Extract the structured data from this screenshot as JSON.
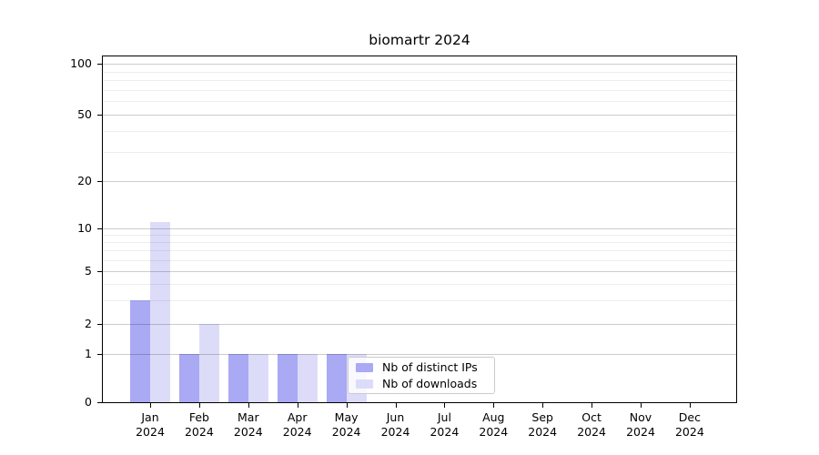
{
  "chart_data": {
    "type": "bar",
    "title": "biomartr 2024",
    "x_categories": [
      "Jan",
      "Feb",
      "Mar",
      "Apr",
      "May",
      "Jun",
      "Jul",
      "Aug",
      "Sep",
      "Oct",
      "Nov",
      "Dec"
    ],
    "x_year": "2024",
    "series": [
      {
        "name": "Nb of distinct IPs",
        "color": "#a9a9f4",
        "values": [
          3,
          1,
          1,
          1,
          1,
          0,
          0,
          0,
          0,
          0,
          0,
          0
        ]
      },
      {
        "name": "Nb of downloads",
        "color": "#dcdcf9",
        "values": [
          11,
          2,
          1,
          1,
          1,
          0,
          0,
          0,
          0,
          0,
          0,
          0
        ]
      }
    ],
    "y_axis": {
      "ticks": [
        0,
        1,
        2,
        5,
        10,
        20,
        50,
        100
      ],
      "minor_gridlines": [
        3,
        4,
        6,
        7,
        8,
        9,
        30,
        40,
        60,
        70,
        80,
        90
      ],
      "scale": "log-like above 1, linear 0-1"
    },
    "legend": {
      "entries": [
        "Nb of distinct IPs",
        "Nb of downloads"
      ],
      "position": "lower center"
    },
    "grid": {
      "orientation": "horizontal",
      "major": true,
      "minor": true
    }
  }
}
